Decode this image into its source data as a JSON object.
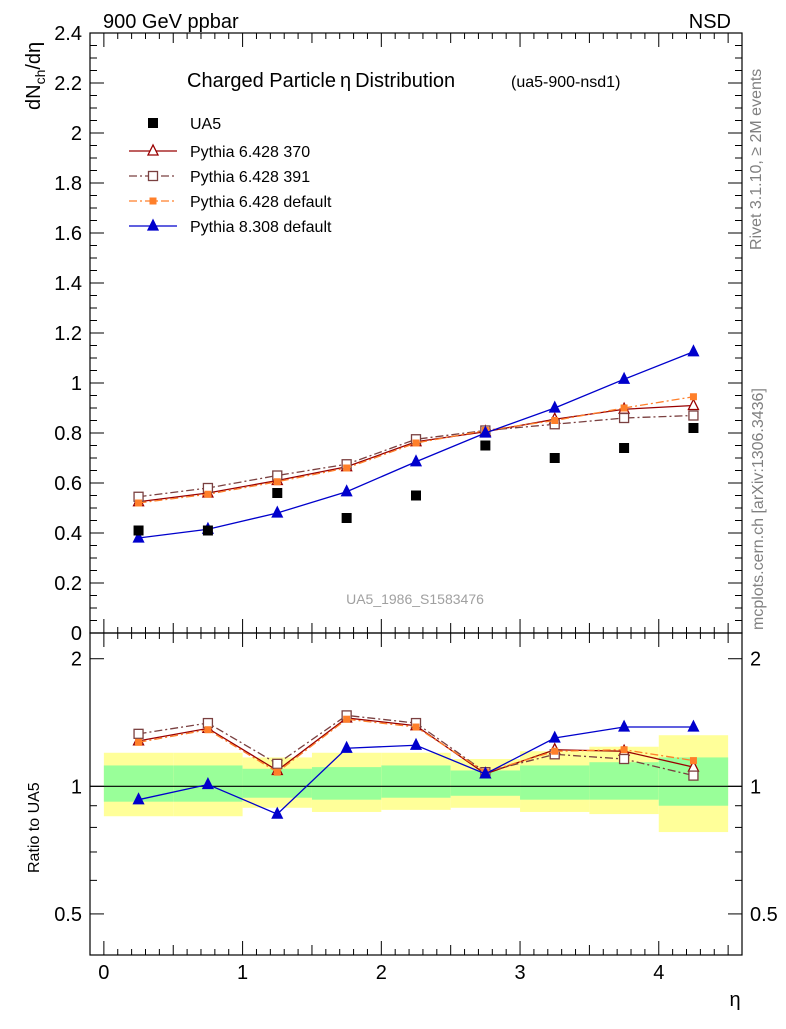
{
  "header": {
    "left": "900 GeV ppbar",
    "right": "NSD"
  },
  "side_labels": {
    "rivet": "Rivet 3.1.10, ≥ 2M events",
    "mcplots": "mcplots.cern.ch [arXiv:1306.3436]"
  },
  "chart_data": {
    "type": "scatter",
    "title": "Charged Particle η Distribution",
    "title_main": "Charged Particle",
    "title_eta": "η",
    "title_rest": "Distribution",
    "subtitle": "(ua5-900-nsd1)",
    "analysis_label": "UA5_1986_S1583476",
    "ylabel_main": "dNch/dη",
    "ylabel_ratio": "Ratio to UA5",
    "xlabel": "η",
    "xlim": [
      -0.1,
      4.6
    ],
    "ylim_main": [
      0,
      2.4
    ],
    "ylim_ratio": [
      0.4,
      2.3
    ],
    "ratio_log_scale": true,
    "xticks": [
      "0",
      "1",
      "2",
      "3",
      "4"
    ],
    "yticks_main": [
      "0",
      "0.2",
      "0.4",
      "0.6",
      "0.8",
      "1",
      "1.2",
      "1.4",
      "1.6",
      "1.8",
      "2",
      "2.2",
      "2.4"
    ],
    "yticks_ratio": [
      "0.5",
      "1",
      "2"
    ],
    "x": [
      0.25,
      0.75,
      1.25,
      1.75,
      2.25,
      2.75,
      3.25,
      3.75,
      4.25
    ],
    "bin_edges": [
      0,
      0.5,
      1,
      1.5,
      2,
      2.5,
      3,
      3.5,
      4,
      4.5
    ],
    "data": {
      "name": "UA5",
      "values": [
        0.41,
        0.41,
        0.56,
        0.46,
        0.55,
        0.75,
        0.7,
        0.74,
        0.82
      ]
    },
    "band_yellow_low": [
      0.85,
      0.85,
      0.89,
      0.87,
      0.88,
      0.89,
      0.87,
      0.86,
      0.78
    ],
    "band_yellow_high": [
      1.2,
      1.2,
      1.17,
      1.2,
      1.2,
      1.16,
      1.21,
      1.24,
      1.32
    ],
    "band_green_low": [
      0.92,
      0.92,
      0.94,
      0.93,
      0.94,
      0.95,
      0.93,
      0.93,
      0.9
    ],
    "band_green_high": [
      1.12,
      1.12,
      1.1,
      1.11,
      1.12,
      1.09,
      1.12,
      1.14,
      1.17
    ],
    "series": [
      {
        "name": "Pythia 6.428 370",
        "color": "#990000",
        "marker": "triangle-open",
        "dash": "",
        "values": [
          0.525,
          0.56,
          0.61,
          0.665,
          0.765,
          0.805,
          0.855,
          0.895,
          0.91
        ],
        "ratio": [
          1.28,
          1.37,
          1.09,
          1.45,
          1.39,
          1.07,
          1.22,
          1.21,
          1.11
        ]
      },
      {
        "name": "Pythia 6.428 391",
        "color": "#7a4040",
        "marker": "square-open",
        "dash": "8 3 2 3",
        "values": [
          0.545,
          0.58,
          0.63,
          0.675,
          0.775,
          0.81,
          0.835,
          0.86,
          0.87
        ],
        "ratio": [
          1.33,
          1.41,
          1.13,
          1.47,
          1.41,
          1.08,
          1.19,
          1.16,
          1.06
        ]
      },
      {
        "name": "Pythia 6.428 default",
        "color": "#ff7f2a",
        "marker": "square-filled",
        "dash": "8 3 2 3",
        "values": [
          0.52,
          0.555,
          0.605,
          0.66,
          0.76,
          0.81,
          0.85,
          0.9,
          0.945
        ],
        "ratio": [
          1.27,
          1.36,
          1.08,
          1.44,
          1.38,
          1.08,
          1.21,
          1.22,
          1.15
        ]
      },
      {
        "name": "Pythia 8.308 default",
        "color": "#0000cc",
        "marker": "triangle-filled",
        "dash": "",
        "values": [
          0.38,
          0.415,
          0.48,
          0.565,
          0.685,
          0.8,
          0.9,
          1.015,
          1.125
        ],
        "ratio": [
          0.93,
          1.01,
          0.86,
          1.23,
          1.25,
          1.07,
          1.3,
          1.38,
          1.38
        ]
      }
    ],
    "legend_position": "top-left"
  }
}
